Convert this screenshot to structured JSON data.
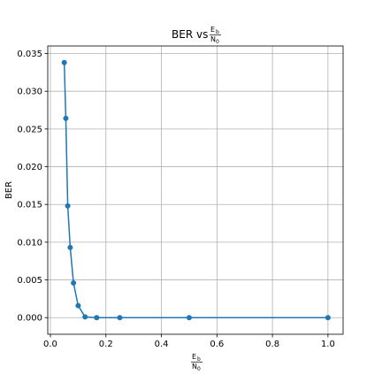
{
  "chart_data": {
    "type": "line",
    "title": "BER vs",
    "title_fraction": {
      "numerator": "E",
      "numerator_sub": "b",
      "denominator": "N",
      "denominator_sub": "0"
    },
    "xlabel": "",
    "xlabel_fraction": {
      "numerator": "E",
      "numerator_sub": "b",
      "denominator": "N",
      "denominator_sub": "0"
    },
    "ylabel": "BER",
    "xlim": [
      -0.0095,
      1.0545
    ],
    "ylim": [
      -0.0022,
      0.036
    ],
    "grid": true,
    "xticks": [
      0.0,
      0.2,
      0.4,
      0.6,
      0.8,
      1.0
    ],
    "xtick_labels": [
      "0.0",
      "0.2",
      "0.4",
      "0.6",
      "0.8",
      "1.0"
    ],
    "yticks": [
      0.0,
      0.005,
      0.01,
      0.015,
      0.02,
      0.025,
      0.03,
      0.035
    ],
    "ytick_labels": [
      "0.000",
      "0.005",
      "0.010",
      "0.015",
      "0.020",
      "0.025",
      "0.030",
      "0.035"
    ],
    "series": [
      {
        "color": "#1f77b4",
        "marker": "circle",
        "x": [
          0.05,
          0.0556,
          0.0625,
          0.0714,
          0.0833,
          0.1,
          0.125,
          0.1667,
          0.25,
          0.5,
          1.0
        ],
        "y": [
          0.0338,
          0.0264,
          0.0148,
          0.0093,
          0.0046,
          0.0016,
          0.0001,
          0.0,
          0.0,
          0.0,
          0.0
        ]
      }
    ]
  }
}
